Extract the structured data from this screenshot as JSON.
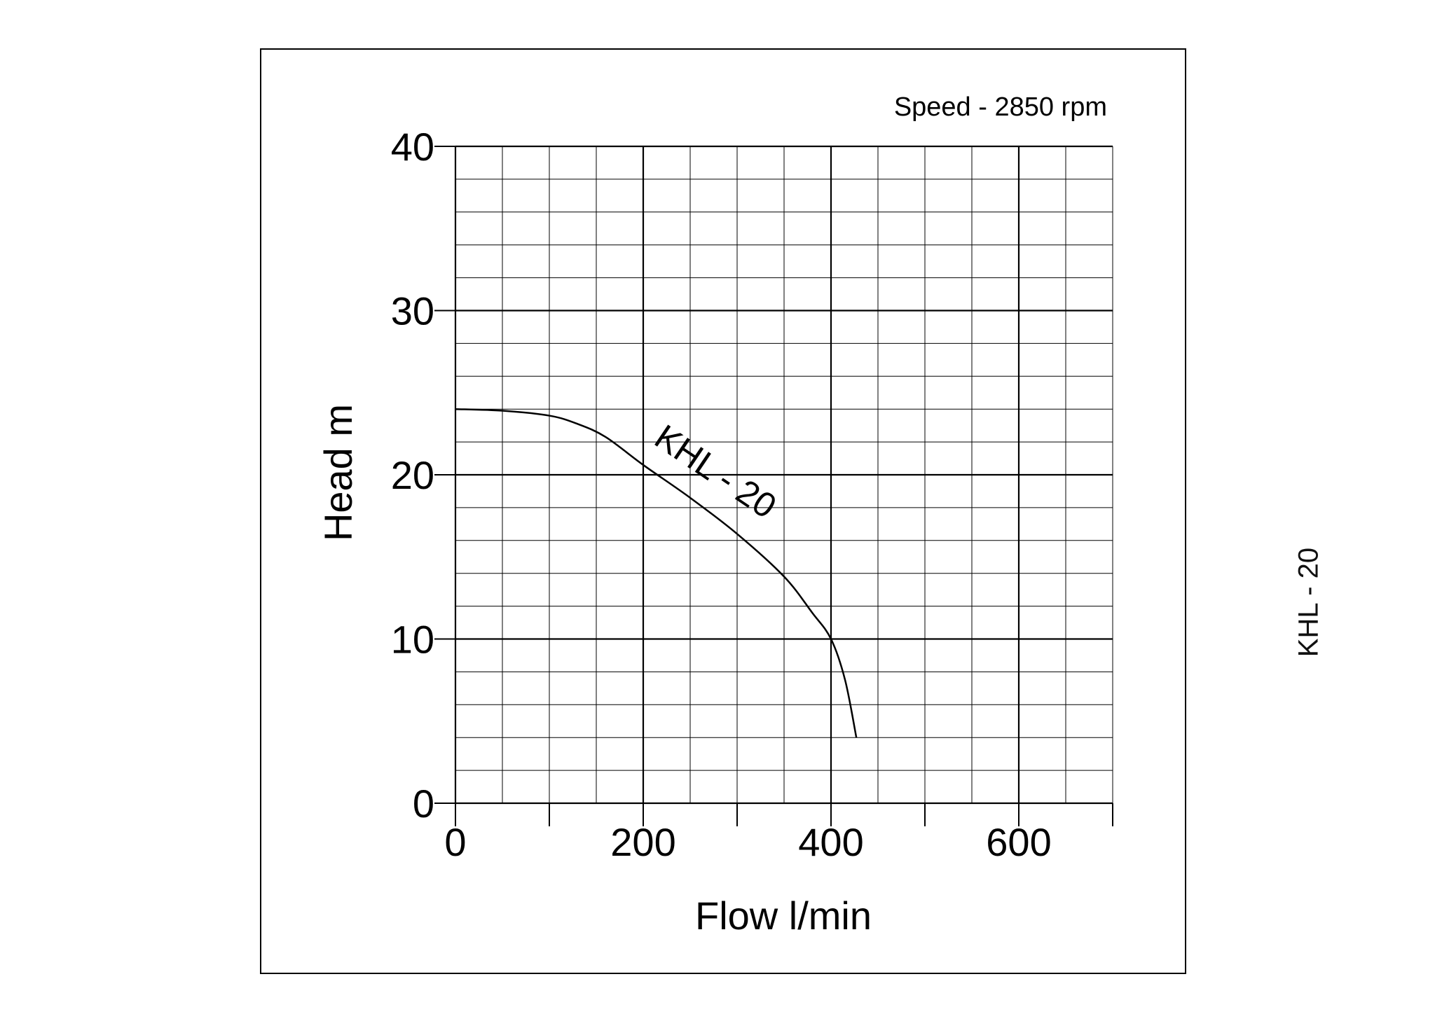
{
  "side_label": "KHL - 20",
  "chart_data": {
    "type": "line",
    "title": "",
    "annotation": "Speed - 2850 rpm",
    "xlabel": "Flow l/min",
    "ylabel": "Head m",
    "xlim": [
      0,
      700
    ],
    "ylim": [
      0,
      40
    ],
    "x_ticks": [
      0,
      200,
      400,
      600
    ],
    "y_ticks": [
      0,
      10,
      20,
      30,
      40
    ],
    "grid": true,
    "series": [
      {
        "name": "KHL - 20",
        "x": [
          0,
          50,
          100,
          130,
          160,
          200,
          250,
          300,
          350,
          380,
          400,
          415,
          427
        ],
        "y": [
          24,
          23.9,
          23.6,
          23.1,
          22.3,
          20.6,
          18.6,
          16.4,
          13.8,
          11.6,
          10.0,
          7.5,
          4.0
        ]
      }
    ]
  }
}
